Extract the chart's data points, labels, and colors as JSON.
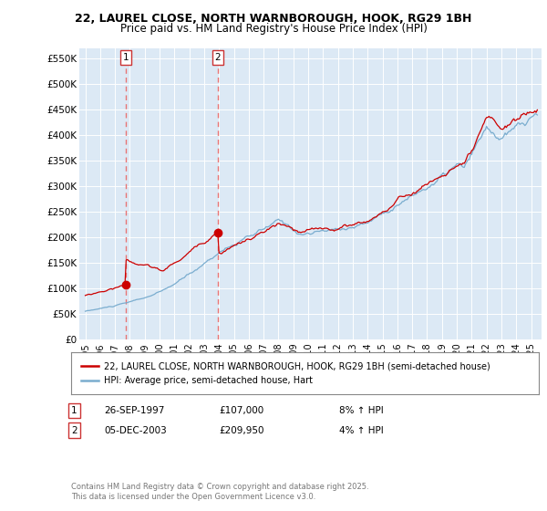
{
  "title1": "22, LAUREL CLOSE, NORTH WARNBOROUGH, HOOK, RG29 1BH",
  "title2": "Price paid vs. HM Land Registry's House Price Index (HPI)",
  "ylim": [
    0,
    570000
  ],
  "yticks": [
    0,
    50000,
    100000,
    150000,
    200000,
    250000,
    300000,
    350000,
    400000,
    450000,
    500000,
    550000
  ],
  "ytick_labels": [
    "£0",
    "£50K",
    "£100K",
    "£150K",
    "£200K",
    "£250K",
    "£300K",
    "£350K",
    "£400K",
    "£450K",
    "£500K",
    "£550K"
  ],
  "bg_color": "#dce9f5",
  "grid_color": "#ffffff",
  "line_color_red": "#cc0000",
  "line_color_blue": "#7aadcf",
  "vline_color": "#e87474",
  "purchase1_date": 1997.74,
  "purchase1_price": 107000,
  "purchase2_date": 2003.92,
  "purchase2_price": 209950,
  "legend_label_red": "22, LAUREL CLOSE, NORTH WARNBOROUGH, HOOK, RG29 1BH (semi-detached house)",
  "legend_label_blue": "HPI: Average price, semi-detached house, Hart",
  "table_row1": [
    "1",
    "26-SEP-1997",
    "£107,000",
    "8% ↑ HPI"
  ],
  "table_row2": [
    "2",
    "05-DEC-2003",
    "£209,950",
    "4% ↑ HPI"
  ],
  "footer": "Contains HM Land Registry data © Crown copyright and database right 2025.\nThis data is licensed under the Open Government Licence v3.0.",
  "title_fontsize": 9,
  "subtitle_fontsize": 8.5
}
